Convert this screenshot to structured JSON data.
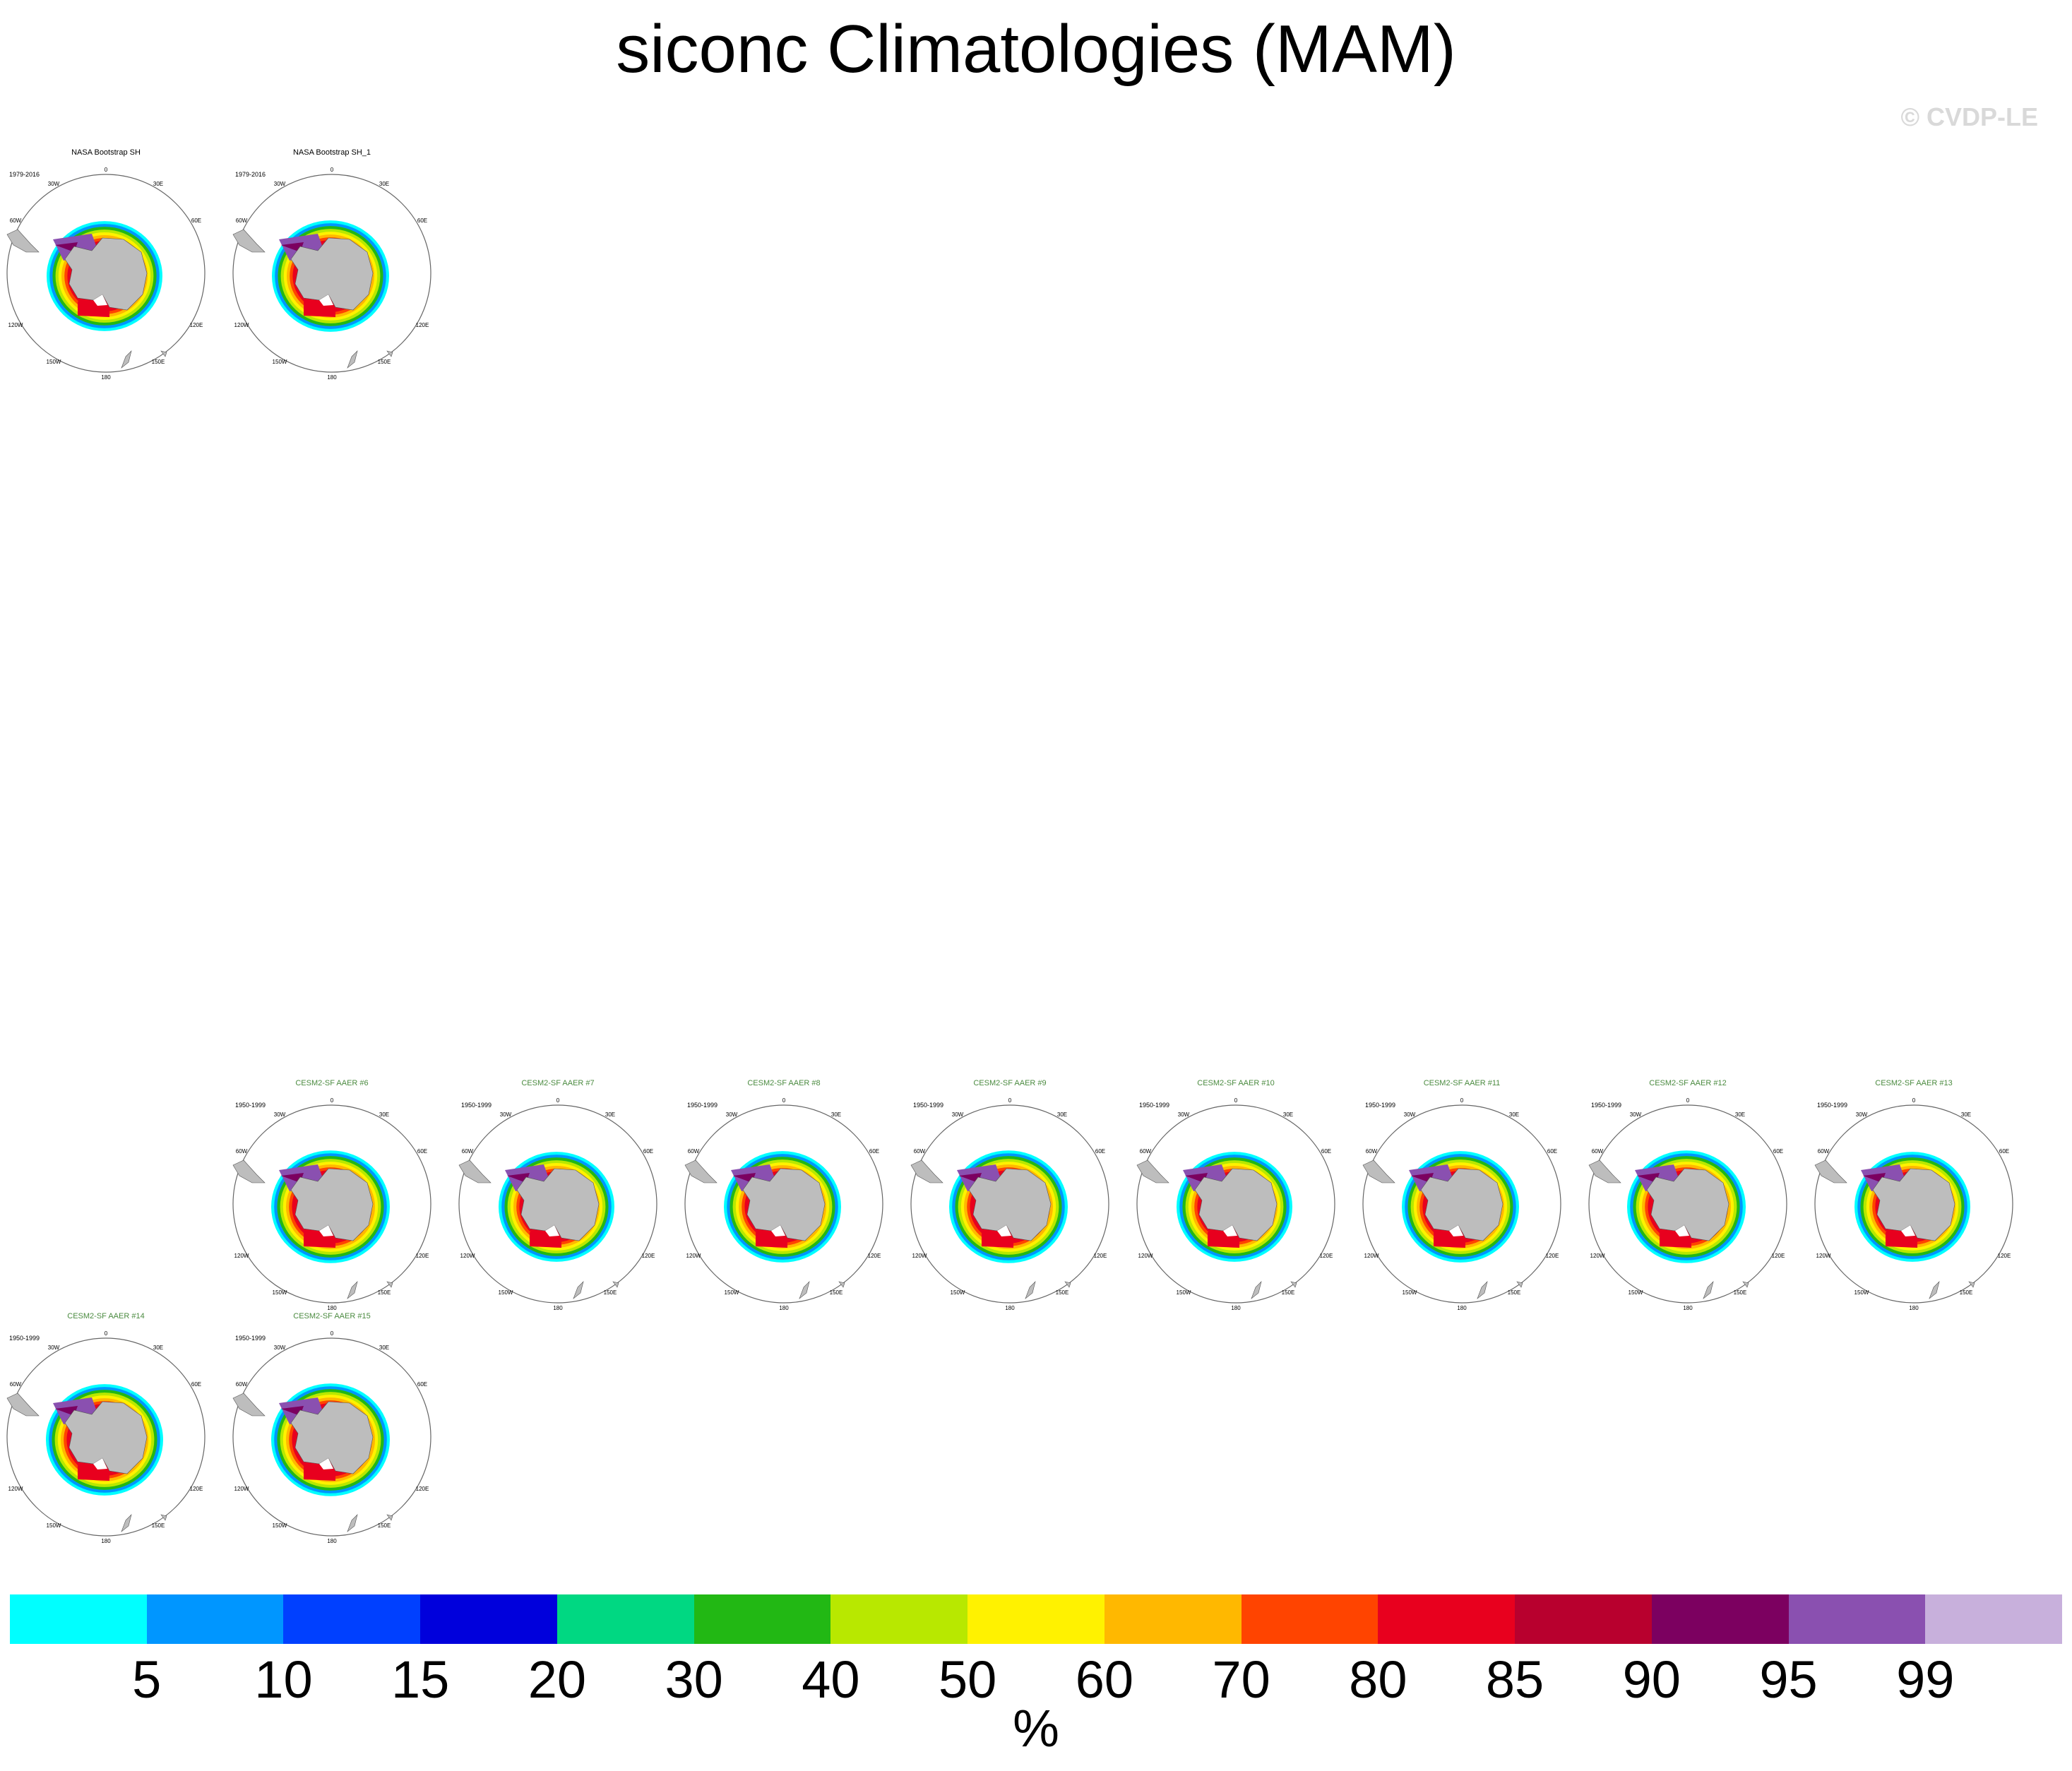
{
  "title": "siconc Climatologies (MAM)",
  "watermark": "© CVDP-LE",
  "panels": [
    {
      "title": "NASA Bootstrap SH",
      "period": "1979-2016",
      "title_color": "#000000",
      "row": 0,
      "col": 0
    },
    {
      "title": "NASA Bootstrap SH_1",
      "period": "1979-2016",
      "title_color": "#000000",
      "row": 0,
      "col": 1
    },
    {
      "title": "CESM2-SF AAER #6",
      "period": "1950-1999",
      "title_color": "#4a8a3f",
      "row": 1,
      "col": 1
    },
    {
      "title": "CESM2-SF AAER #7",
      "period": "1950-1999",
      "title_color": "#4a8a3f",
      "row": 1,
      "col": 2
    },
    {
      "title": "CESM2-SF AAER #8",
      "period": "1950-1999",
      "title_color": "#4a8a3f",
      "row": 1,
      "col": 3
    },
    {
      "title": "CESM2-SF AAER #9",
      "period": "1950-1999",
      "title_color": "#4a8a3f",
      "row": 1,
      "col": 4
    },
    {
      "title": "CESM2-SF AAER #10",
      "period": "1950-1999",
      "title_color": "#4a8a3f",
      "row": 1,
      "col": 5
    },
    {
      "title": "CESM2-SF AAER #11",
      "period": "1950-1999",
      "title_color": "#4a8a3f",
      "row": 1,
      "col": 6
    },
    {
      "title": "CESM2-SF AAER #12",
      "period": "1950-1999",
      "title_color": "#4a8a3f",
      "row": 1,
      "col": 7
    },
    {
      "title": "CESM2-SF AAER #13",
      "period": "1950-1999",
      "title_color": "#4a8a3f",
      "row": 1,
      "col": 8
    },
    {
      "title": "CESM2-SF AAER #14",
      "period": "1950-1999",
      "title_color": "#4a8a3f",
      "row": 2,
      "col": 0
    },
    {
      "title": "CESM2-SF AAER #15",
      "period": "1950-1999",
      "title_color": "#4a8a3f",
      "row": 2,
      "col": 1
    }
  ],
  "map_labels": {
    "top": "0",
    "right": "90E",
    "bottom": "180",
    "left": "90W",
    "tr1": "30E",
    "tr2": "60E",
    "br1": "120E",
    "br2": "150E",
    "tl1": "30W",
    "tl2": "60W",
    "bl1": "120W",
    "bl2": "150W"
  },
  "colorbar": {
    "colors": [
      "#00ffff",
      "#0096ff",
      "#0040ff",
      "#0000dc",
      "#00d882",
      "#22b814",
      "#b8e800",
      "#fff200",
      "#ffb800",
      "#ff4400",
      "#e8001e",
      "#b8002e",
      "#7c0060",
      "#8a50b0",
      "#c8b0dc"
    ],
    "labels": [
      "5",
      "10",
      "15",
      "20",
      "30",
      "40",
      "50",
      "60",
      "70",
      "80",
      "85",
      "90",
      "95",
      "99"
    ],
    "units": "%"
  }
}
